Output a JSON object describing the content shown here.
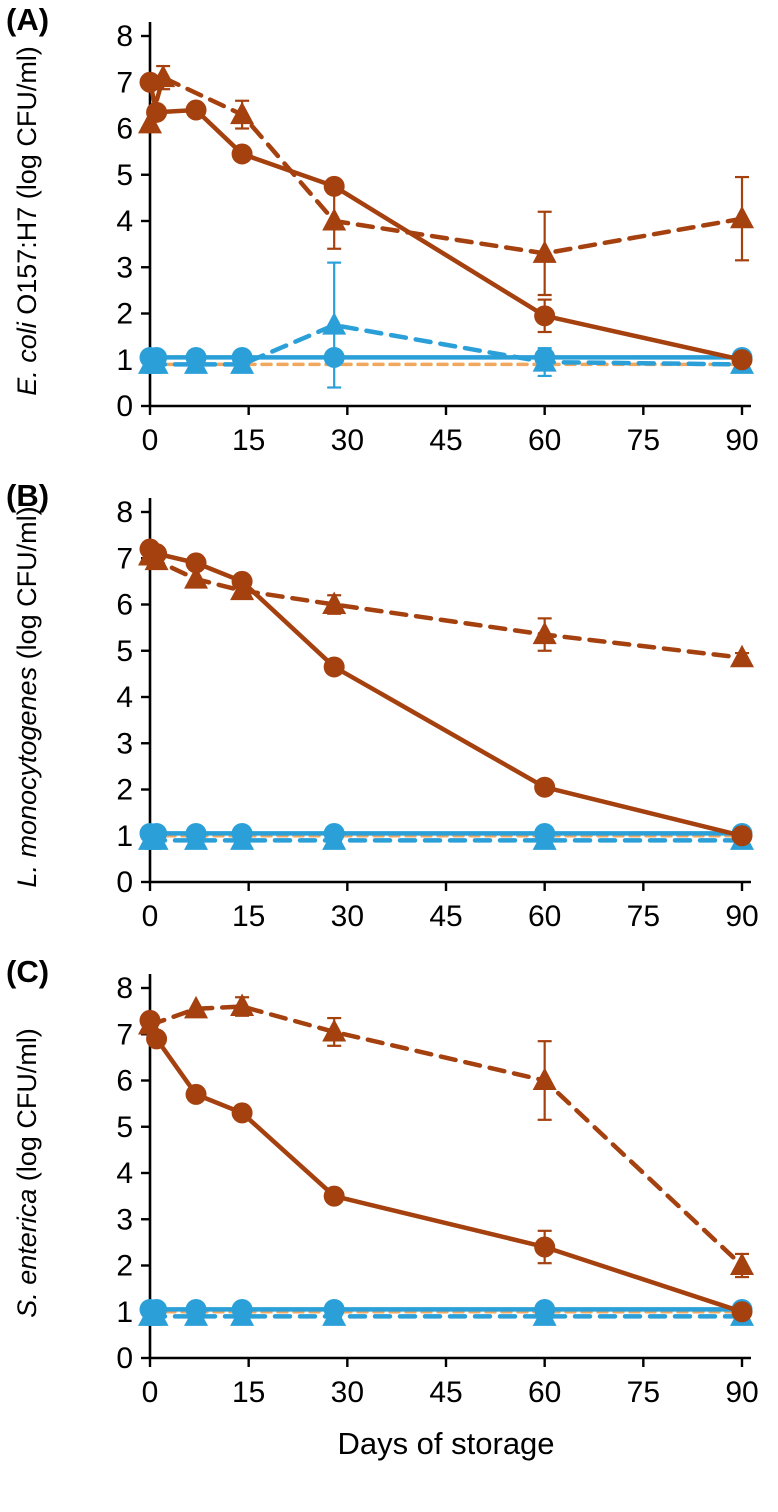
{
  "xlabel": "Days of storage",
  "colors": {
    "dark_red": "#A5400F",
    "blue": "#2B9FD8",
    "baseline_orange": "#F2A75F",
    "axis": "#000000"
  },
  "chart_data": [
    {
      "type": "line",
      "panel": "(A)",
      "ylabel_italic": "E. coli",
      "ylabel_rest": " O157:H7  (log CFU/ml)",
      "xlabel": "",
      "xlim": [
        0,
        90
      ],
      "ylim": [
        0,
        8
      ],
      "xticks": [
        0,
        15,
        30,
        45,
        60,
        75,
        90
      ],
      "yticks": [
        0,
        1,
        2,
        3,
        4,
        5,
        6,
        7,
        8
      ],
      "grid": false,
      "legend": "none",
      "series": [
        {
          "id": "detection-limit",
          "name": "detection limit (orange dashed)",
          "color": "#F2A75F",
          "dash": "9 7",
          "width": 3.5,
          "marker": "none",
          "x": [
            0,
            90
          ],
          "y": [
            0.9,
            0.9
          ]
        },
        {
          "id": "blue-triangles-dashed",
          "name": "blue triangles (dashed)",
          "color": "#2B9FD8",
          "dash": "15 10",
          "width": 4.5,
          "marker": "triangle",
          "x": [
            0,
            1,
            7,
            14,
            28,
            60,
            90
          ],
          "y": [
            0.9,
            0.9,
            0.9,
            0.9,
            1.75,
            0.95,
            0.9
          ],
          "err": [
            0,
            0,
            0,
            0,
            1.35,
            0.3,
            0.15
          ]
        },
        {
          "id": "blue-circles-solid",
          "name": "blue circles (solid)",
          "color": "#2B9FD8",
          "dash": null,
          "width": 4.5,
          "marker": "circle",
          "x": [
            0,
            1,
            7,
            14,
            28,
            60,
            90
          ],
          "y": [
            1.05,
            1.05,
            1.05,
            1.05,
            1.05,
            1.05,
            1.05
          ],
          "err": [
            0,
            0,
            0,
            0,
            0,
            0.15,
            0
          ]
        },
        {
          "id": "red-triangles-dashed",
          "name": "dark-red triangles (dashed)",
          "color": "#A5400F",
          "dash": "15 10",
          "width": 4.5,
          "marker": "triangle",
          "x": [
            0,
            2,
            14,
            28,
            60,
            90
          ],
          "y": [
            6.1,
            7.1,
            6.3,
            4.0,
            3.3,
            4.05
          ],
          "err": [
            0,
            0.25,
            0.3,
            0.6,
            0.9,
            0.9
          ]
        },
        {
          "id": "red-circles-solid",
          "name": "dark-red circles (solid)",
          "color": "#A5400F",
          "dash": null,
          "width": 4.5,
          "marker": "circle",
          "x": [
            0,
            1,
            7,
            14,
            28,
            60,
            90
          ],
          "y": [
            7.0,
            6.35,
            6.4,
            5.45,
            4.75,
            1.95,
            1.0
          ],
          "err": [
            0,
            0,
            0,
            0,
            0,
            0.35,
            0
          ]
        }
      ]
    },
    {
      "type": "line",
      "panel": "(B)",
      "ylabel_italic": "L. monocytogenes",
      "ylabel_rest": " (log CFU/ml)",
      "xlabel": "",
      "xlim": [
        0,
        90
      ],
      "ylim": [
        0,
        8
      ],
      "xticks": [
        0,
        15,
        30,
        45,
        60,
        75,
        90
      ],
      "yticks": [
        0,
        1,
        2,
        3,
        4,
        5,
        6,
        7,
        8
      ],
      "grid": false,
      "legend": "none",
      "series": [
        {
          "id": "detection-limit",
          "name": "detection limit (orange dashed)",
          "color": "#F2A75F",
          "dash": "9 7",
          "width": 3.5,
          "marker": "none",
          "x": [
            0,
            90
          ],
          "y": [
            1.0,
            1.0
          ]
        },
        {
          "id": "blue-triangles-dashed",
          "name": "blue triangles (dashed)",
          "color": "#2B9FD8",
          "dash": "15 10",
          "width": 4.5,
          "marker": "triangle",
          "x": [
            0,
            1,
            7,
            14,
            28,
            60,
            90
          ],
          "y": [
            0.9,
            0.9,
            0.9,
            0.9,
            0.9,
            0.9,
            0.9
          ]
        },
        {
          "id": "blue-circles-solid",
          "name": "blue circles (solid)",
          "color": "#2B9FD8",
          "dash": null,
          "width": 4.5,
          "marker": "circle",
          "x": [
            0,
            1,
            7,
            14,
            28,
            60,
            90
          ],
          "y": [
            1.05,
            1.05,
            1.05,
            1.05,
            1.05,
            1.05,
            1.05
          ]
        },
        {
          "id": "red-triangles-dashed",
          "name": "dark-red triangles (dashed)",
          "color": "#A5400F",
          "dash": "15 10",
          "width": 4.5,
          "marker": "triangle",
          "x": [
            0,
            1,
            7,
            14,
            28,
            60,
            90
          ],
          "y": [
            7.05,
            6.95,
            6.55,
            6.3,
            6.0,
            5.35,
            4.85
          ],
          "err": [
            0,
            0,
            0,
            0,
            0.2,
            0.35,
            0.1
          ]
        },
        {
          "id": "red-circles-solid",
          "name": "dark-red circles (solid)",
          "color": "#A5400F",
          "dash": null,
          "width": 4.5,
          "marker": "circle",
          "x": [
            0,
            1,
            7,
            14,
            28,
            60,
            90
          ],
          "y": [
            7.2,
            7.1,
            6.9,
            6.5,
            4.65,
            2.05,
            1.0
          ]
        }
      ]
    },
    {
      "type": "line",
      "panel": "(C)",
      "ylabel_italic": "S. enterica",
      "ylabel_rest": " (log CFU/ml)",
      "xlabel": "Days of storage",
      "xlim": [
        0,
        90
      ],
      "ylim": [
        0,
        8
      ],
      "xticks": [
        0,
        15,
        30,
        45,
        60,
        75,
        90
      ],
      "yticks": [
        0,
        1,
        2,
        3,
        4,
        5,
        6,
        7,
        8
      ],
      "grid": false,
      "legend": "none",
      "series": [
        {
          "id": "detection-limit",
          "name": "detection limit (orange dashed)",
          "color": "#F2A75F",
          "dash": "9 7",
          "width": 3.5,
          "marker": "none",
          "x": [
            0,
            90
          ],
          "y": [
            1.0,
            1.0
          ]
        },
        {
          "id": "blue-triangles-dashed",
          "name": "blue triangles (dashed)",
          "color": "#2B9FD8",
          "dash": "15 10",
          "width": 4.5,
          "marker": "triangle",
          "x": [
            0,
            1,
            7,
            14,
            28,
            60,
            90
          ],
          "y": [
            0.9,
            0.9,
            0.9,
            0.9,
            0.9,
            0.9,
            0.9
          ]
        },
        {
          "id": "blue-circles-solid",
          "name": "blue circles (solid)",
          "color": "#2B9FD8",
          "dash": null,
          "width": 4.5,
          "marker": "circle",
          "x": [
            0,
            1,
            7,
            14,
            28,
            60,
            90
          ],
          "y": [
            1.05,
            1.05,
            1.05,
            1.05,
            1.05,
            1.05,
            1.05
          ]
        },
        {
          "id": "red-triangles-dashed",
          "name": "dark-red triangles (dashed)",
          "color": "#A5400F",
          "dash": "15 10",
          "width": 4.5,
          "marker": "triangle",
          "x": [
            0,
            7,
            14,
            28,
            60,
            90
          ],
          "y": [
            7.2,
            7.55,
            7.6,
            7.05,
            6.0,
            2.0
          ],
          "err": [
            0,
            0,
            0.2,
            0.3,
            0.85,
            0.25
          ]
        },
        {
          "id": "red-circles-solid",
          "name": "dark-red circles (solid)",
          "color": "#A5400F",
          "dash": null,
          "width": 4.5,
          "marker": "circle",
          "x": [
            0,
            1,
            7,
            14,
            28,
            60,
            90
          ],
          "y": [
            7.3,
            6.9,
            5.7,
            5.3,
            3.5,
            2.4,
            1.0
          ],
          "err": [
            0,
            0,
            0,
            0,
            0,
            0.35,
            0
          ]
        }
      ]
    }
  ]
}
